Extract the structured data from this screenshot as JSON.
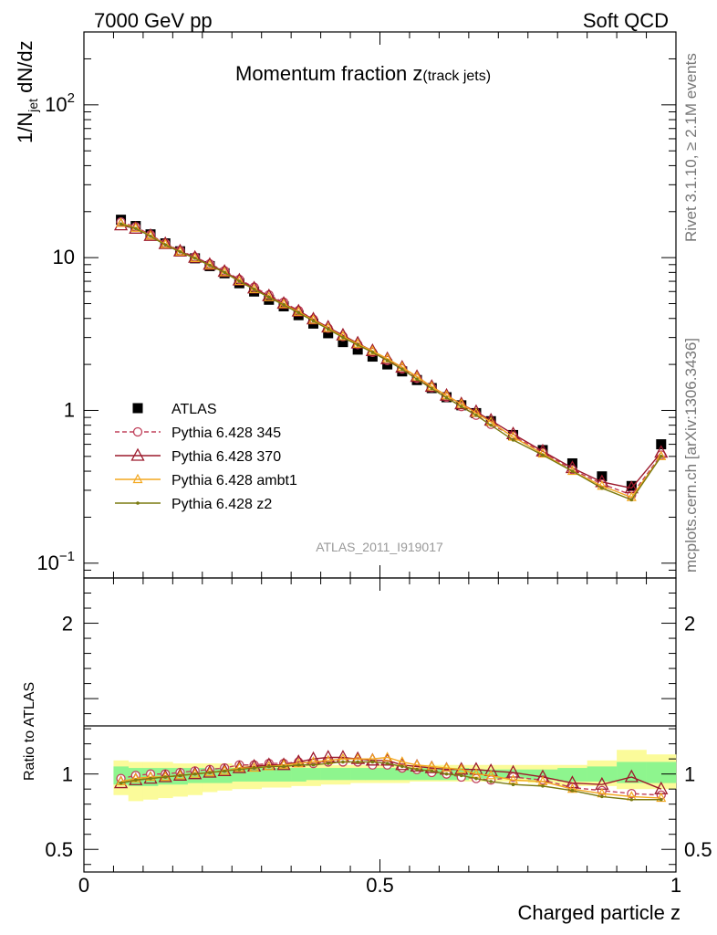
{
  "header": {
    "left": "7000 GeV pp",
    "right": "Soft QCD"
  },
  "side_labels": {
    "rivet": "Rivet 3.1.10, ≥ 2.1M events",
    "mcplots": "mcplots.cern.ch [arXiv:1306.3436]"
  },
  "colors": {
    "atlas": "#000000",
    "p345": "#c0405a",
    "p370": "#9c1a2c",
    "ambt1": "#f3a71f",
    "z2": "#7a7a10",
    "band_green": "#8ef58e",
    "band_yellow": "#fbfb9a"
  },
  "chart_data": [
    {
      "type": "line",
      "title": "Momentum fraction z",
      "title_sub": "(track jets)",
      "watermark": "ATLAS_2011_I919017",
      "ylabel": "1/N",
      "ylabel_sub": "jet",
      "ylabel_tail": " dN/dz",
      "yscale": "log",
      "xlim": [
        0,
        1.0
      ],
      "ylim": [
        0.08,
        300
      ],
      "y_ticks": [
        {
          "value": 0.1,
          "base": "10",
          "exp": "−1"
        },
        {
          "value": 1,
          "base": "1",
          "exp": ""
        },
        {
          "value": 10,
          "base": "10",
          "exp": ""
        },
        {
          "value": 100,
          "base": "10",
          "exp": "2"
        }
      ],
      "legend_position": "left",
      "x": [
        0.0625,
        0.0875,
        0.1125,
        0.1375,
        0.1625,
        0.1875,
        0.2125,
        0.2375,
        0.2625,
        0.2875,
        0.3125,
        0.3375,
        0.3625,
        0.3875,
        0.4125,
        0.4375,
        0.4625,
        0.4875,
        0.5125,
        0.5375,
        0.5625,
        0.5875,
        0.6125,
        0.6375,
        0.6625,
        0.6875,
        0.725,
        0.775,
        0.825,
        0.875,
        0.925,
        0.975
      ],
      "series": [
        {
          "name": "ATLAS",
          "color_key": "atlas",
          "marker": "square",
          "values": [
            17.7,
            16.1,
            14.2,
            12.4,
            11.0,
            9.9,
            8.8,
            7.9,
            6.8,
            6.0,
            5.3,
            4.8,
            4.2,
            3.7,
            3.2,
            2.8,
            2.5,
            2.25,
            2.0,
            1.8,
            1.58,
            1.4,
            1.22,
            1.08,
            0.96,
            0.85,
            0.69,
            0.55,
            0.45,
            0.37,
            0.32,
            0.6
          ]
        },
        {
          "name": "Pythia 6.428 345",
          "color_key": "p345",
          "marker": "circle",
          "dash": "5,3",
          "values": [
            17.1,
            15.9,
            14.1,
            12.4,
            11.1,
            10.1,
            9.1,
            8.2,
            7.2,
            6.4,
            5.7,
            5.1,
            4.5,
            3.95,
            3.45,
            3.05,
            2.7,
            2.4,
            2.12,
            1.87,
            1.62,
            1.41,
            1.22,
            1.06,
            0.93,
            0.81,
            0.68,
            0.53,
            0.41,
            0.33,
            0.28,
            0.51
          ]
        },
        {
          "name": "Pythia 6.428 370",
          "color_key": "p370",
          "marker": "triangle",
          "values": [
            16.3,
            15.5,
            13.9,
            12.3,
            11.0,
            10.0,
            9.0,
            8.1,
            7.1,
            6.3,
            5.6,
            5.0,
            4.45,
            3.95,
            3.5,
            3.1,
            2.75,
            2.45,
            2.17,
            1.91,
            1.66,
            1.43,
            1.25,
            1.1,
            0.98,
            0.86,
            0.7,
            0.54,
            0.42,
            0.34,
            0.31,
            0.53
          ]
        },
        {
          "name": "Pythia 6.428 ambt1",
          "color_key": "ambt1",
          "marker": "triangle-small",
          "values": [
            16.8,
            15.6,
            13.9,
            12.2,
            10.9,
            9.9,
            8.9,
            8.0,
            7.0,
            6.2,
            5.5,
            4.95,
            4.4,
            3.9,
            3.45,
            3.05,
            2.72,
            2.45,
            2.18,
            1.92,
            1.66,
            1.43,
            1.25,
            1.1,
            0.96,
            0.84,
            0.67,
            0.52,
            0.4,
            0.32,
            0.27,
            0.5
          ]
        },
        {
          "name": "Pythia 6.428 z2",
          "color_key": "z2",
          "marker": "dot",
          "values": [
            16.6,
            15.5,
            13.8,
            12.1,
            10.9,
            9.9,
            8.9,
            8.0,
            7.0,
            6.2,
            5.5,
            4.9,
            4.35,
            3.85,
            3.4,
            3.0,
            2.68,
            2.4,
            2.12,
            1.86,
            1.6,
            1.39,
            1.21,
            1.06,
            0.93,
            0.8,
            0.64,
            0.51,
            0.4,
            0.31,
            0.26,
            0.5
          ]
        }
      ]
    },
    {
      "type": "line",
      "ylabel": "Ratio to ATLAS",
      "xlabel": "Charged particle z",
      "xlim": [
        0,
        1.0
      ],
      "ylim": [
        0.35,
        2.3
      ],
      "x_ticks": [
        {
          "value": 0,
          "label": "0"
        },
        {
          "value": 0.5,
          "label": "0.5"
        },
        {
          "value": 1,
          "label": "1"
        }
      ],
      "y_ticks": [
        {
          "value": 0.5,
          "label": "0.5"
        },
        {
          "value": 1,
          "label": "1"
        },
        {
          "value": 2,
          "label": "2"
        }
      ],
      "bin_edges": [
        0.05,
        0.075,
        0.1,
        0.125,
        0.15,
        0.175,
        0.2,
        0.225,
        0.25,
        0.275,
        0.3,
        0.325,
        0.35,
        0.375,
        0.4,
        0.425,
        0.45,
        0.475,
        0.5,
        0.525,
        0.55,
        0.575,
        0.6,
        0.625,
        0.65,
        0.675,
        0.7,
        0.75,
        0.8,
        0.85,
        0.9,
        0.95,
        1.0
      ],
      "band_yellow": {
        "lo": [
          0.86,
          0.82,
          0.83,
          0.84,
          0.85,
          0.86,
          0.88,
          0.89,
          0.9,
          0.9,
          0.91,
          0.91,
          0.92,
          0.92,
          0.93,
          0.93,
          0.94,
          0.94,
          0.94,
          0.94,
          0.95,
          0.95,
          0.95,
          0.95,
          0.95,
          0.95,
          0.95,
          0.94,
          0.92,
          0.92,
          0.9,
          0.9
        ],
        "hi": [
          1.09,
          1.08,
          1.08,
          1.08,
          1.07,
          1.07,
          1.07,
          1.07,
          1.06,
          1.06,
          1.06,
          1.06,
          1.06,
          1.06,
          1.06,
          1.06,
          1.06,
          1.06,
          1.06,
          1.06,
          1.06,
          1.06,
          1.06,
          1.06,
          1.06,
          1.06,
          1.06,
          1.06,
          1.06,
          1.09,
          1.16,
          1.13
        ]
      },
      "band_green": {
        "lo": [
          0.93,
          0.92,
          0.92,
          0.93,
          0.93,
          0.94,
          0.94,
          0.94,
          0.95,
          0.95,
          0.95,
          0.95,
          0.95,
          0.96,
          0.96,
          0.96,
          0.96,
          0.96,
          0.96,
          0.96,
          0.96,
          0.96,
          0.96,
          0.96,
          0.97,
          0.97,
          0.97,
          0.96,
          0.95,
          0.95,
          0.94,
          0.94
        ],
        "hi": [
          1.05,
          1.04,
          1.04,
          1.04,
          1.04,
          1.04,
          1.04,
          1.04,
          1.04,
          1.04,
          1.04,
          1.04,
          1.04,
          1.04,
          1.04,
          1.04,
          1.04,
          1.04,
          1.04,
          1.04,
          1.04,
          1.04,
          1.04,
          1.04,
          1.03,
          1.03,
          1.03,
          1.03,
          1.04,
          1.05,
          1.08,
          1.08
        ]
      },
      "x": [
        0.0625,
        0.0875,
        0.1125,
        0.1375,
        0.1625,
        0.1875,
        0.2125,
        0.2375,
        0.2625,
        0.2875,
        0.3125,
        0.3375,
        0.3625,
        0.3875,
        0.4125,
        0.4375,
        0.4625,
        0.4875,
        0.5125,
        0.5375,
        0.5625,
        0.5875,
        0.6125,
        0.6375,
        0.6625,
        0.6875,
        0.725,
        0.775,
        0.825,
        0.875,
        0.925,
        0.975
      ],
      "series": [
        {
          "name": "Pythia 6.428 345",
          "color_key": "p345",
          "marker": "circle",
          "dash": "5,3",
          "values": [
            0.97,
            0.99,
            1.0,
            1.0,
            1.01,
            1.02,
            1.03,
            1.04,
            1.06,
            1.06,
            1.07,
            1.07,
            1.08,
            1.07,
            1.08,
            1.08,
            1.08,
            1.06,
            1.06,
            1.04,
            1.03,
            1.01,
            1.0,
            0.98,
            0.97,
            0.96,
            0.98,
            0.96,
            0.91,
            0.89,
            0.87,
            0.86
          ]
        },
        {
          "name": "Pythia 6.428 370",
          "color_key": "p370",
          "marker": "triangle",
          "values": [
            0.94,
            0.96,
            0.97,
            0.98,
            0.99,
            1.0,
            1.01,
            1.02,
            1.04,
            1.05,
            1.06,
            1.06,
            1.08,
            1.1,
            1.11,
            1.11,
            1.1,
            1.09,
            1.09,
            1.06,
            1.05,
            1.04,
            1.03,
            1.03,
            1.03,
            1.02,
            1.01,
            0.98,
            0.94,
            0.93,
            0.98,
            0.9
          ]
        },
        {
          "name": "Pythia 6.428 ambt1",
          "color_key": "ambt1",
          "marker": "triangle-small",
          "values": [
            0.95,
            0.97,
            0.98,
            0.98,
            0.99,
            1.0,
            1.01,
            1.02,
            1.04,
            1.04,
            1.05,
            1.06,
            1.07,
            1.08,
            1.09,
            1.1,
            1.1,
            1.1,
            1.11,
            1.08,
            1.06,
            1.05,
            1.04,
            1.03,
            1.0,
            0.99,
            0.96,
            0.95,
            0.9,
            0.87,
            0.85,
            0.84
          ]
        },
        {
          "name": "Pythia 6.428 z2",
          "color_key": "z2",
          "marker": "dot",
          "values": [
            0.94,
            0.96,
            0.97,
            0.98,
            0.99,
            1.0,
            1.01,
            1.02,
            1.03,
            1.04,
            1.05,
            1.05,
            1.06,
            1.06,
            1.07,
            1.08,
            1.08,
            1.08,
            1.07,
            1.05,
            1.03,
            1.02,
            1.0,
            0.99,
            0.97,
            0.95,
            0.93,
            0.92,
            0.89,
            0.85,
            0.83,
            0.83
          ]
        }
      ]
    }
  ]
}
